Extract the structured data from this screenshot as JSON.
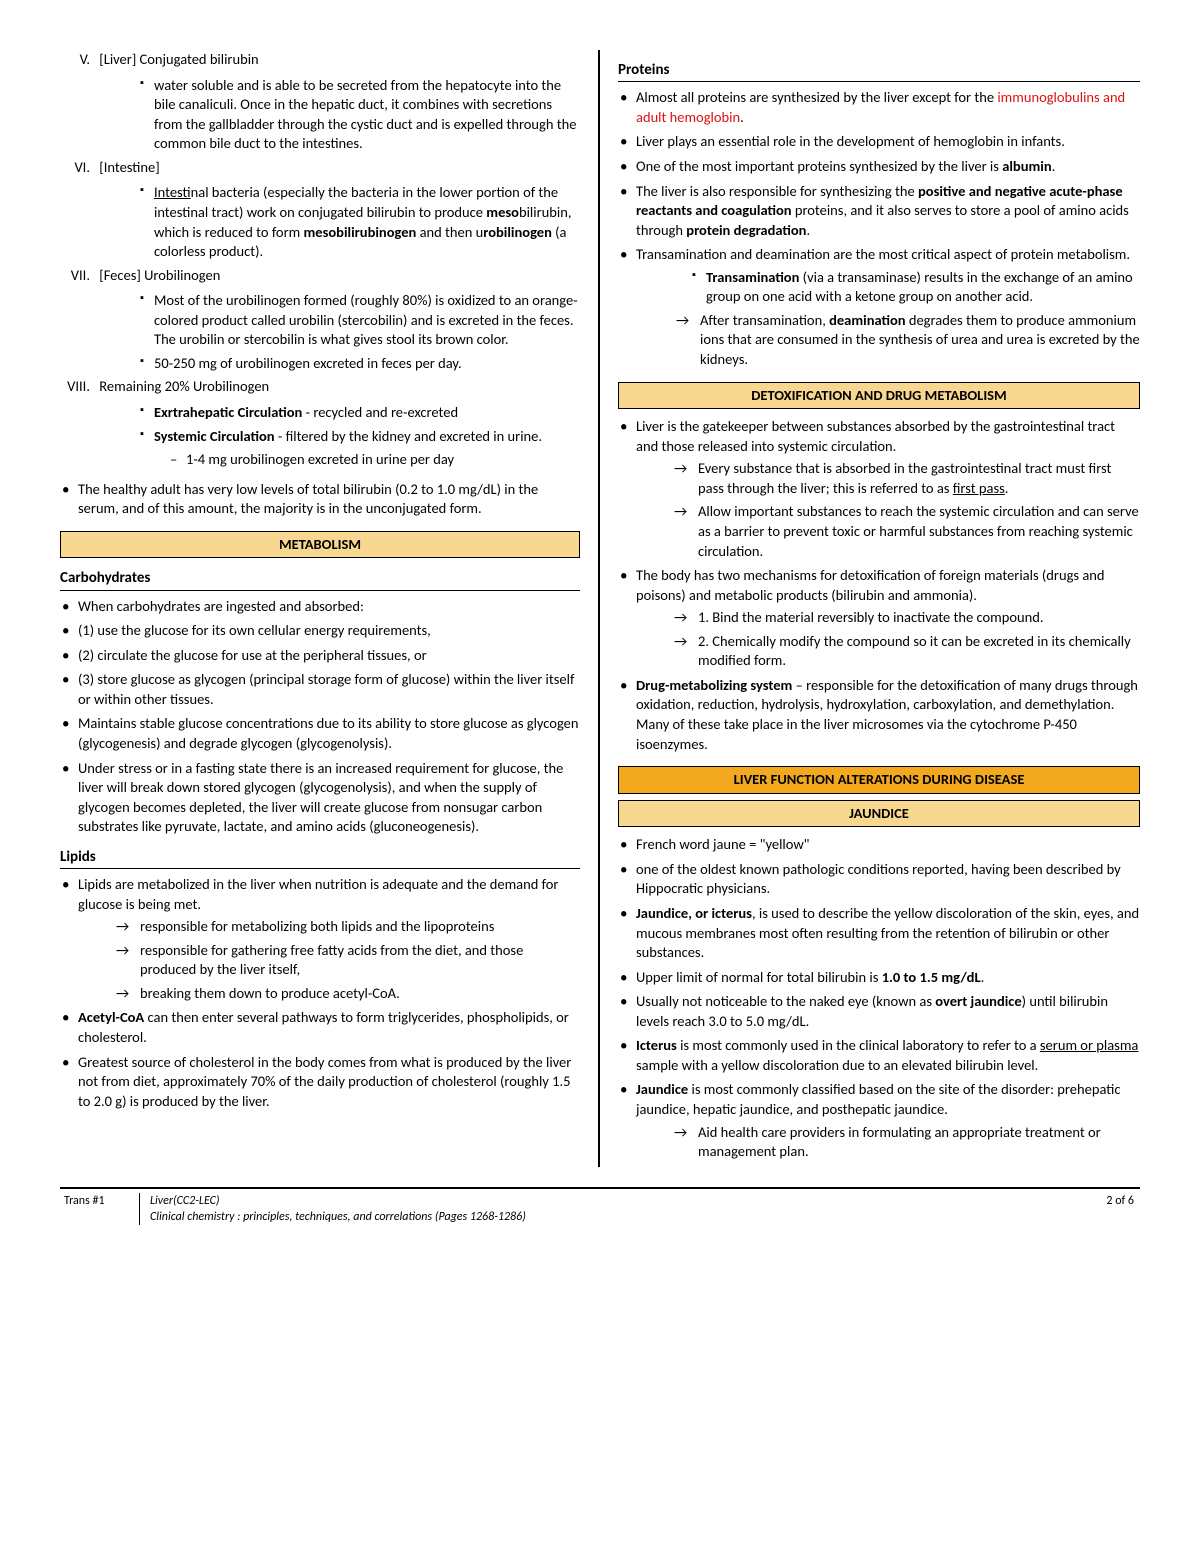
{
  "left": {
    "roman": [
      {
        "num": "V.",
        "text": "[Liver] Conjugated bilirubin",
        "sq": [
          "water soluble and is able to be secreted from the hepatocyte into the bile canaliculi. Once in the hepatic duct, it combines with secretions from the gallbladder through the cystic duct and is expelled through the common bile duct to the intestines."
        ]
      },
      {
        "num": "VI.",
        "text": "[Intestine]",
        "sq_html": [
          "<span class='u'>Intest</span>inal bacteria (especially the bacteria in the lower portion of the intestinal tract) work on conjugated bilirubin to produce <span class='b'>meso</span>bilirubin, which is reduced to form <span class='b'>mesobilirubinogen</span> and then u<span class='b'>robilinogen</span> (a colorless product)."
        ]
      },
      {
        "num": "VII.",
        "text": "[Feces] Urobilinogen",
        "sq": [
          "Most of the urobilinogen formed (roughly 80%) is oxidized to an orange-colored product called urobilin (stercobilin) and is excreted in the feces. The urobilin or stercobilin is what gives stool its brown color.",
          "50-250 mg of urobilinogen excreted in feces per day."
        ]
      },
      {
        "num": "VIII.",
        "text": "Remaining 20% Urobilinogen",
        "sq_html": [
          "<span class='b'>Exrtrahepatic Circulation</span> - recycled and re-excreted",
          "<span class='b'>Systemic Circulation</span> - filtered by the kidney and excreted in urine."
        ],
        "dash": [
          "1-4 mg urobilinogen excreted in urine per day"
        ]
      }
    ],
    "healthy_note": "The healthy adult has very low levels of total bilirubin (0.2 to 1.0 mg/dL) in the serum, and of this amount, the majority is in the unconjugated form.",
    "metabolism_title": "METABOLISM",
    "carbs_title": "Carbohydrates",
    "carbs": [
      "When carbohydrates are ingested and absorbed:",
      "(1) use the glucose for its own cellular energy requirements,",
      "(2) circulate the glucose for use at the peripheral tissues, or",
      "(3) store glucose as glycogen (principal storage form of glucose) within the liver itself or within other tissues.",
      "Maintains stable glucose concentrations due to its ability to store glucose as glycogen (glycogenesis) and degrade glycogen (glycogenolysis).",
      "Under stress or in a fasting state there is an increased requirement for glucose, the liver will break down stored glycogen (glycogenolysis), and when the supply of glycogen becomes depleted, the liver will create glucose from nonsugar carbon substrates like pyruvate, lactate, and amino acids (gluconeogenesis)."
    ],
    "lipids_title": "Lipids",
    "lipids_b1": "Lipids are metabolized in the liver when nutrition is adequate and the demand for glucose is being met.",
    "lipids_arrows": [
      "responsible for metabolizing both lipids and the lipoproteins",
      "responsible for gathering free fatty acids from the diet, and those produced by the liver itself,",
      "breaking them down to produce acetyl-CoA."
    ],
    "lipids_b2_html": "<span class='b'>Acetyl-CoA</span> can then enter several pathways to form triglycerides, phospholipids, or cholesterol.",
    "lipids_b3": "Greatest source of cholesterol in the body comes from what is produced by the liver not from diet, approximately 70% of the daily production of cholesterol (roughly 1.5 to 2.0 g) is produced by the liver."
  },
  "right": {
    "proteins_title": "Proteins",
    "proteins": [
      {
        "html": "Almost all proteins are synthesized by the liver except for the <span class='red'>immunoglobulins and adult hemoglobin</span>."
      },
      {
        "text": "Liver plays an essential role in the development of hemoglobin in infants."
      },
      {
        "html": "One of the most important proteins synthesized by the liver is <span class='b'>albumin</span>."
      },
      {
        "html": "The liver is also responsible for synthesizing the <span class='b'>positive and negative acute-phase reactants and coagulation</span> proteins, and it also serves to store a pool of amino acids through <span class='b'>protein degradation</span>."
      },
      {
        "text": "Transamination and deamination are the most critical aspect of protein metabolism.",
        "sq_html": [
          "<span class='b'>Transamination</span> (via a transaminase) results in the exchange of an amino group on one acid with a ketone group on another acid."
        ],
        "arr_html": [
          "After transamination, <span class='b'>deamination</span> degrades them to produce ammonium ions that are consumed in the synthesis of urea and urea is excreted by the kidneys."
        ]
      }
    ],
    "detox_title": "DETOXIFICATION AND DRUG METABOLISM",
    "detox_b1": "Liver is the gatekeeper between substances absorbed by the gastrointestinal tract and those released into systemic circulation.",
    "detox_b1_arr_html": [
      "Every substance that is absorbed in the gastrointestinal tract must first pass through the liver; this is referred to as <span class='u'>first pass</span>.",
      "Allow important substances to reach the systemic circulation and can serve as a barrier to prevent toxic or harmful substances from reaching systemic circulation."
    ],
    "detox_b2": "The body has two mechanisms for detoxification of foreign materials (drugs and poisons) and metabolic products (bilirubin and ammonia).",
    "detox_b2_arr": [
      "1. Bind the material reversibly to inactivate the compound.",
      "2. Chemically modify the compound so it can be excreted in its chemically modified form."
    ],
    "detox_b3_html": "<span class='b'>Drug-metabolizing system</span> – responsible for the detoxification of many drugs through oxidation, reduction, hydrolysis, hydroxylation, carboxylation, and demethylation. Many of these take place in the liver microsomes via the cytochrome P-450 isoenzymes.",
    "alter_title": "LIVER FUNCTION ALTERATIONS DURING DISEASE",
    "jaundice_title": "JAUNDICE",
    "jaundice": [
      {
        "text": "French word jaune = \"yellow\""
      },
      {
        "text": "one of the oldest known pathologic conditions reported, having been described by Hippocratic physicians."
      },
      {
        "html": "<span class='b'>Jaundice, or icterus</span>, is used to describe the yellow discoloration of the skin, eyes, and mucous membranes most often resulting from the retention of bilirubin or other substances."
      },
      {
        "html": "Upper limit of normal for total bilirubin is <span class='b'>1.0 to 1.5 mg/dL</span>."
      },
      {
        "html": "Usually not noticeable to the naked eye (known as <span class='b'>overt jaundice</span>) until bilirubin levels reach 3.0 to 5.0 mg/dL."
      },
      {
        "html": "<span class='b'>Icterus</span> is most commonly used in the clinical laboratory to refer to a <span class='u'>serum or plasma</span> sample with a yellow discoloration due to an elevated bilirubin level."
      },
      {
        "html": "<span class='b'>Jaundice</span> is most commonly classified based on the site of the disorder: prehepatic jaundice, hepatic jaundice, and posthepatic jaundice.",
        "arr": [
          "Aid health care providers in formulating an appropriate treatment or management plan."
        ]
      }
    ]
  },
  "footer": {
    "left": "Trans #1",
    "mid1": "Liver(CC2-LEC)",
    "mid2": "Clinical chemistry : principles, techniques, and correlations (Pages 1268-1286)",
    "right": "2 of 6"
  }
}
